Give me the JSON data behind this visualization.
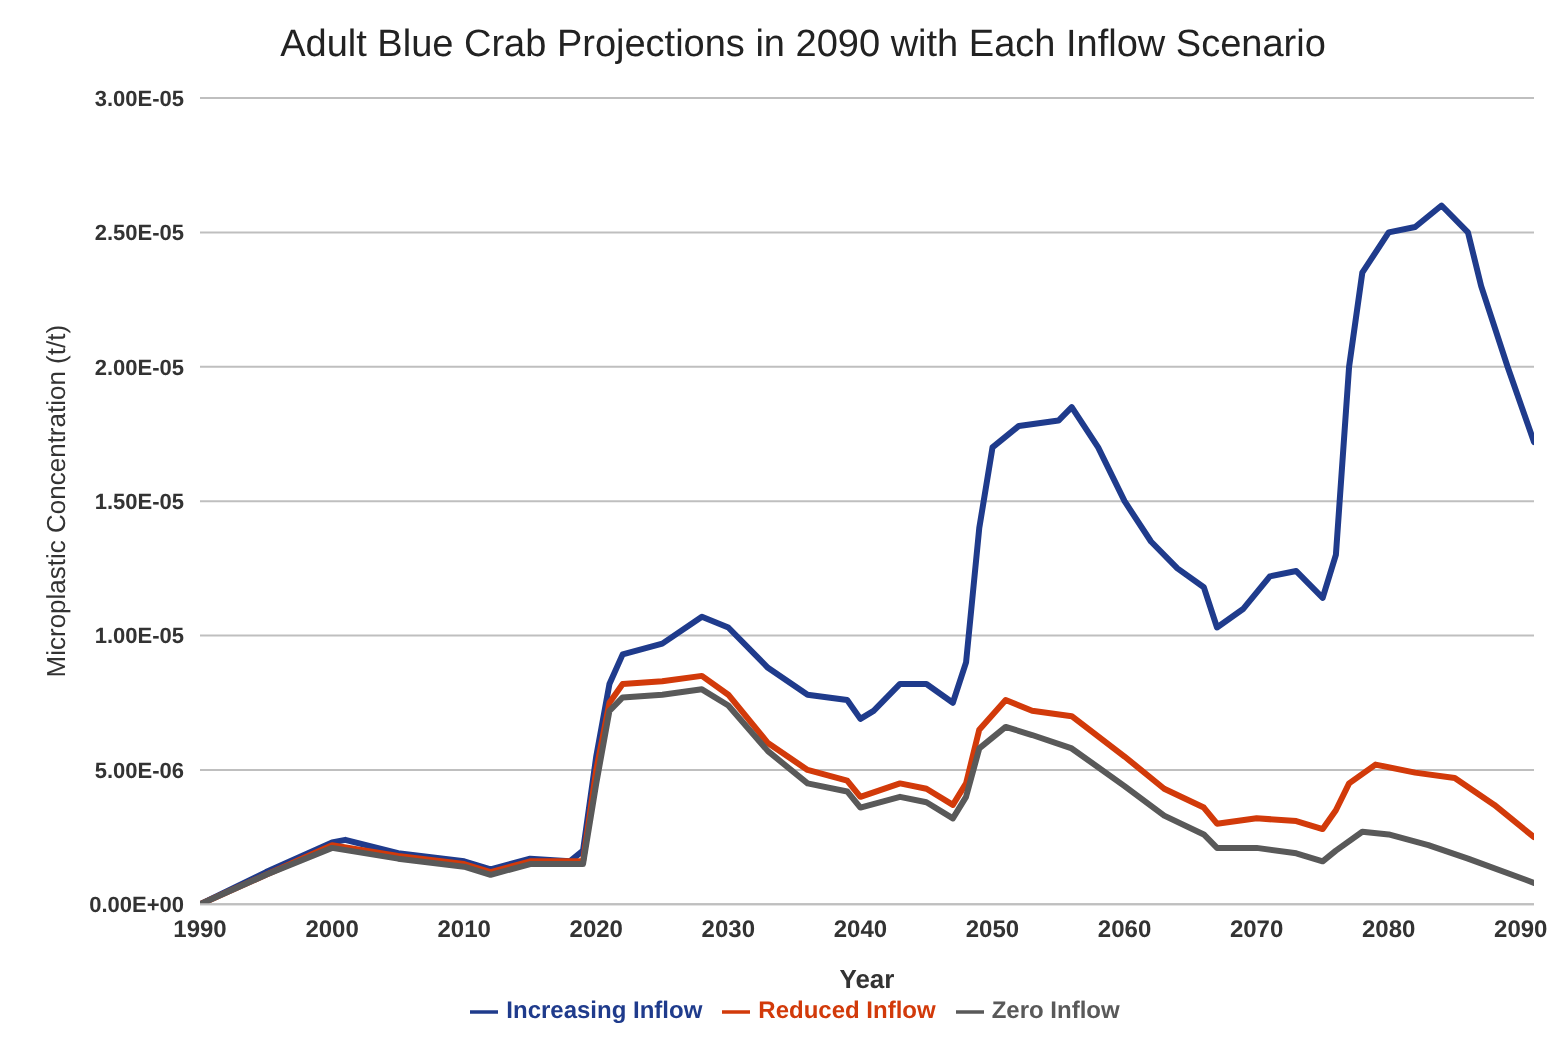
{
  "chart_data": {
    "type": "line",
    "title": "Adult Blue Crab Projections in 2090 with Each Inflow Scenario",
    "xlabel": "Year",
    "ylabel": "Microplastic Concentration (t/t)",
    "xlim": [
      1990,
      2091
    ],
    "xticks": [
      1990,
      2000,
      2010,
      2020,
      2030,
      2040,
      2050,
      2060,
      2070,
      2080,
      2090
    ],
    "ylim": [
      0,
      3e-05
    ],
    "yticks": [
      {
        "value": 0,
        "label": "0.00E+00"
      },
      {
        "value": 5e-06,
        "label": "5.00E-06"
      },
      {
        "value": 1e-05,
        "label": "1.00E-05"
      },
      {
        "value": 1.5e-05,
        "label": "1.50E-05"
      },
      {
        "value": 2e-05,
        "label": "2.00E-05"
      },
      {
        "value": 2.5e-05,
        "label": "2.50E-05"
      },
      {
        "value": 3e-05,
        "label": "3.00E-05"
      }
    ],
    "grid": "y",
    "legend": "bottom",
    "marker": "none",
    "line_style": "solid",
    "series": [
      {
        "name": "Increasing Inflow",
        "color": "#1f3b8c",
        "x": [
          1990,
          1995,
          2000,
          2001,
          2005,
          2010,
          2012,
          2015,
          2018,
          2019,
          2020,
          2021,
          2022,
          2025,
          2028,
          2030,
          2033,
          2036,
          2039,
          2040,
          2041,
          2043,
          2045,
          2047,
          2048,
          2049,
          2050,
          2052,
          2055,
          2056,
          2058,
          2060,
          2062,
          2064,
          2066,
          2067,
          2069,
          2071,
          2073,
          2075,
          2076,
          2077,
          2078,
          2080,
          2082,
          2084,
          2086,
          2087,
          2089,
          2091
        ],
        "values": [
          0,
          1.2e-06,
          2.3e-06,
          2.4e-06,
          1.9e-06,
          1.6e-06,
          1.3e-06,
          1.7e-06,
          1.6e-06,
          2e-06,
          5.5e-06,
          8.2e-06,
          9.3e-06,
          9.7e-06,
          1.07e-05,
          1.03e-05,
          8.8e-06,
          7.8e-06,
          7.6e-06,
          6.9e-06,
          7.2e-06,
          8.2e-06,
          8.2e-06,
          7.5e-06,
          9e-06,
          1.4e-05,
          1.7e-05,
          1.78e-05,
          1.8e-05,
          1.85e-05,
          1.7e-05,
          1.5e-05,
          1.35e-05,
          1.25e-05,
          1.18e-05,
          1.03e-05,
          1.1e-05,
          1.22e-05,
          1.24e-05,
          1.14e-05,
          1.3e-05,
          2e-05,
          2.35e-05,
          2.5e-05,
          2.52e-05,
          2.6e-05,
          2.5e-05,
          2.3e-05,
          2e-05,
          1.72e-05
        ]
      },
      {
        "name": "Reduced Inflow",
        "color": "#d23a0a",
        "x": [
          1990,
          1995,
          2000,
          2005,
          2010,
          2012,
          2015,
          2019,
          2020,
          2021,
          2022,
          2025,
          2028,
          2030,
          2033,
          2036,
          2039,
          2040,
          2043,
          2045,
          2047,
          2048,
          2049,
          2051,
          2053,
          2056,
          2060,
          2063,
          2066,
          2067,
          2070,
          2073,
          2075,
          2076,
          2077,
          2079,
          2082,
          2085,
          2088,
          2091
        ],
        "values": [
          0,
          1.1e-06,
          2.2e-06,
          1.8e-06,
          1.5e-06,
          1.2e-06,
          1.6e-06,
          1.6e-06,
          5e-06,
          7.5e-06,
          8.2e-06,
          8.3e-06,
          8.5e-06,
          7.8e-06,
          6e-06,
          5e-06,
          4.6e-06,
          4e-06,
          4.5e-06,
          4.3e-06,
          3.7e-06,
          4.5e-06,
          6.5e-06,
          7.6e-06,
          7.2e-06,
          7e-06,
          5.5e-06,
          4.3e-06,
          3.6e-06,
          3e-06,
          3.2e-06,
          3.1e-06,
          2.8e-06,
          3.5e-06,
          4.5e-06,
          5.2e-06,
          4.9e-06,
          4.7e-06,
          3.7e-06,
          2.5e-06
        ]
      },
      {
        "name": "Zero Inflow",
        "color": "#595959",
        "x": [
          1990,
          1995,
          2000,
          2005,
          2010,
          2012,
          2015,
          2019,
          2020,
          2021,
          2022,
          2025,
          2028,
          2030,
          2033,
          2036,
          2039,
          2040,
          2043,
          2045,
          2047,
          2048,
          2049,
          2051,
          2053,
          2056,
          2060,
          2063,
          2066,
          2067,
          2070,
          2073,
          2075,
          2076,
          2078,
          2080,
          2083,
          2086,
          2091
        ],
        "values": [
          0,
          1.1e-06,
          2.1e-06,
          1.7e-06,
          1.4e-06,
          1.1e-06,
          1.5e-06,
          1.5e-06,
          4.5e-06,
          7.2e-06,
          7.7e-06,
          7.8e-06,
          8e-06,
          7.4e-06,
          5.7e-06,
          4.5e-06,
          4.2e-06,
          3.6e-06,
          4e-06,
          3.8e-06,
          3.2e-06,
          4e-06,
          5.8e-06,
          6.6e-06,
          6.3e-06,
          5.8e-06,
          4.4e-06,
          3.3e-06,
          2.6e-06,
          2.1e-06,
          2.1e-06,
          1.9e-06,
          1.6e-06,
          2e-06,
          2.7e-06,
          2.6e-06,
          2.2e-06,
          1.7e-06,
          8e-07
        ]
      }
    ]
  }
}
